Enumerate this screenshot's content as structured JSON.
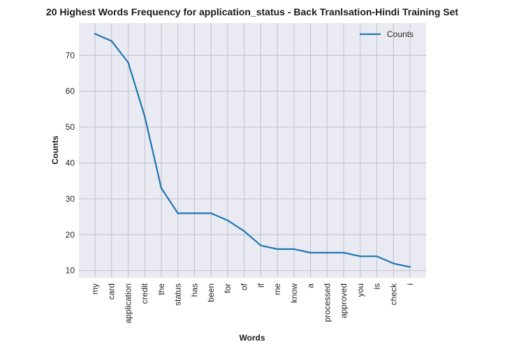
{
  "chart_data": {
    "type": "line",
    "title": "20 Highest Words Frequency for application_status - Back Tranlsation-Hindi Training Set",
    "xlabel": "Words",
    "ylabel": "Counts",
    "categories": [
      "my",
      "card",
      "application",
      "credit",
      "the",
      "status",
      "has",
      "been",
      "for",
      "of",
      "if",
      "me",
      "know",
      "a",
      "processed",
      "approved",
      "you",
      "is",
      "check",
      "i"
    ],
    "series": [
      {
        "name": "Counts",
        "values": [
          76,
          74,
          68,
          53,
          33,
          26,
          26,
          26,
          24,
          21,
          17,
          16,
          16,
          15,
          15,
          15,
          14,
          14,
          12,
          11
        ]
      }
    ],
    "yticks": [
      10,
      20,
      30,
      40,
      50,
      60,
      70
    ],
    "ylim": [
      8,
      79
    ],
    "grid": true,
    "legend": "top-right",
    "colors": {
      "line": "#1f77b4",
      "background": "#eaeaf2",
      "grid": "#c0c0c8"
    }
  }
}
